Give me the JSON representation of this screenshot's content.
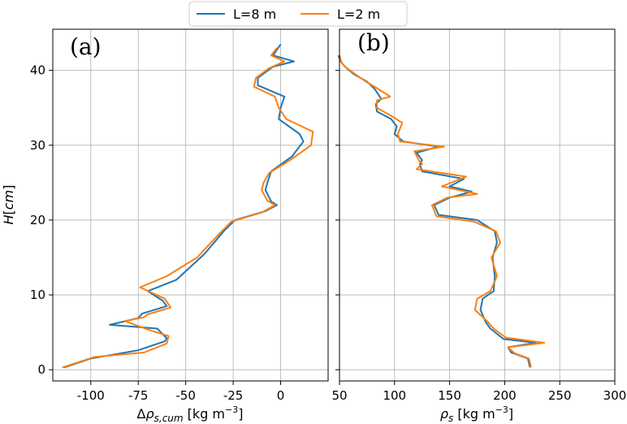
{
  "legend": {
    "entries": [
      {
        "label": "L=8 m",
        "color": "#1f77b4"
      },
      {
        "label": "L=2 m",
        "color": "#ff7f0e"
      }
    ],
    "placement": "top-center"
  },
  "chart_data": [
    {
      "type": "line",
      "panel_label": "(a)",
      "xlabel": "Δρ_{s,cum} [kg m^{-3}]",
      "ylabel": "H[cm]",
      "xlim": [
        -120,
        25
      ],
      "ylim": [
        -1.5,
        45.5
      ],
      "xticks": [
        -100,
        -75,
        -50,
        -25,
        0
      ],
      "xtick_labels": [
        "-100",
        "-75",
        "-50",
        "-25",
        "0"
      ],
      "yticks": [
        0,
        10,
        20,
        30,
        40
      ],
      "ytick_labels": [
        "0",
        "10",
        "20",
        "30",
        "40"
      ],
      "grid": true,
      "series": [
        {
          "name": "L=8 m",
          "color": "#1f77b4",
          "points": [
            [
              -114,
              0.3
            ],
            [
              -100,
              1.5
            ],
            [
              -75,
              2.6
            ],
            [
              -61,
              3.8
            ],
            [
              -60,
              4.2
            ],
            [
              -65,
              5.5
            ],
            [
              -90,
              6.0
            ],
            [
              -75,
              6.9
            ],
            [
              -73,
              7.5
            ],
            [
              -60,
              8.5
            ],
            [
              -62,
              9.2
            ],
            [
              -70,
              10.5
            ],
            [
              -55,
              12.0
            ],
            [
              -40,
              15.5
            ],
            [
              -30,
              18.5
            ],
            [
              -24,
              20.0
            ],
            [
              -8,
              21.2
            ],
            [
              -2,
              22.0
            ],
            [
              -5,
              22.5
            ],
            [
              -8,
              24.0
            ],
            [
              -7,
              25.0
            ],
            [
              -5,
              26.5
            ],
            [
              6,
              28.5
            ],
            [
              8,
              29.2
            ],
            [
              12,
              30.5
            ],
            [
              10,
              31.5
            ],
            [
              -1,
              33.5
            ],
            [
              0,
              35.0
            ],
            [
              2,
              36.5
            ],
            [
              -12,
              38.0
            ],
            [
              -12,
              39.0
            ],
            [
              -4,
              40.5
            ],
            [
              7,
              41.2
            ],
            [
              -4,
              42.0
            ],
            [
              0,
              43.5
            ]
          ]
        },
        {
          "name": "L=2 m",
          "color": "#ff7f0e",
          "points": [
            [
              -115,
              0.3
            ],
            [
              -98,
              1.7
            ],
            [
              -72,
              2.3
            ],
            [
              -60,
              3.5
            ],
            [
              -59,
              4.5
            ],
            [
              -69,
              5.3
            ],
            [
              -82,
              6.5
            ],
            [
              -72,
              7.0
            ],
            [
              -70,
              7.4
            ],
            [
              -58,
              8.3
            ],
            [
              -61,
              9.5
            ],
            [
              -74,
              11.0
            ],
            [
              -60,
              12.5
            ],
            [
              -44,
              15.0
            ],
            [
              -33,
              18.0
            ],
            [
              -26,
              19.8
            ],
            [
              -10,
              21.0
            ],
            [
              -3,
              22.0
            ],
            [
              -7,
              22.6
            ],
            [
              -10,
              24.0
            ],
            [
              -9,
              25.0
            ],
            [
              -6,
              26.3
            ],
            [
              5,
              28.0
            ],
            [
              16,
              30.0
            ],
            [
              17,
              31.8
            ],
            [
              3,
              33.5
            ],
            [
              -1,
              35.0
            ],
            [
              -3,
              36.5
            ],
            [
              -14,
              37.8
            ],
            [
              -13,
              39.0
            ],
            [
              -6,
              40.3
            ],
            [
              2,
              41.2
            ],
            [
              -5,
              42.0
            ],
            [
              -2,
              43.0
            ]
          ]
        }
      ]
    },
    {
      "type": "line",
      "panel_label": "(b)",
      "xlabel": "ρ_s [kg m^{-3}]",
      "xlim": [
        50,
        300
      ],
      "ylim": [
        -1.5,
        45.5
      ],
      "xticks": [
        50,
        100,
        150,
        200,
        250,
        300
      ],
      "xtick_labels": [
        "50",
        "100",
        "150",
        "200",
        "250",
        "300"
      ],
      "yticks": [
        0,
        10,
        20,
        30,
        40
      ],
      "grid": true,
      "series": [
        {
          "name": "L=8 m",
          "color": "#1f77b4",
          "points": [
            [
              223,
              0.3
            ],
            [
              221,
              1.5
            ],
            [
              206,
              2.3
            ],
            [
              203,
              3.0
            ],
            [
              228,
              3.6
            ],
            [
              199,
              4.1
            ],
            [
              187,
              5.5
            ],
            [
              183,
              6.3
            ],
            [
              178,
              8.0
            ],
            [
              180,
              9.5
            ],
            [
              190,
              10.5
            ],
            [
              191,
              12.5
            ],
            [
              189,
              15.0
            ],
            [
              193,
              17.0
            ],
            [
              191,
              18.5
            ],
            [
              175,
              20.0
            ],
            [
              140,
              20.7
            ],
            [
              136,
              22.0
            ],
            [
              150,
              23.0
            ],
            [
              170,
              23.8
            ],
            [
              150,
              24.5
            ],
            [
              163,
              25.5
            ],
            [
              125,
              26.5
            ],
            [
              123,
              27.5
            ],
            [
              125,
              28.0
            ],
            [
              120,
              29.0
            ],
            [
              140,
              29.8
            ],
            [
              108,
              30.5
            ],
            [
              100,
              31.5
            ],
            [
              102,
              32.5
            ],
            [
              97,
              33.5
            ],
            [
              84,
              34.5
            ],
            [
              83,
              35.5
            ],
            [
              88,
              36.2
            ],
            [
              82,
              37.5
            ],
            [
              75,
              38.5
            ],
            [
              63,
              39.5
            ],
            [
              55,
              40.5
            ],
            [
              51,
              41.2
            ],
            [
              49,
              42.0
            ]
          ]
        },
        {
          "name": "L=2 m",
          "color": "#ff7f0e",
          "points": [
            [
              224,
              0.3
            ],
            [
              222,
              1.5
            ],
            [
              209,
              2.2
            ],
            [
              203,
              3.0
            ],
            [
              236,
              3.6
            ],
            [
              201,
              4.3
            ],
            [
              190,
              5.5
            ],
            [
              184,
              6.5
            ],
            [
              173,
              8.0
            ],
            [
              175,
              9.5
            ],
            [
              187,
              10.5
            ],
            [
              193,
              12.5
            ],
            [
              188,
              15.0
            ],
            [
              196,
              17.0
            ],
            [
              192,
              18.5
            ],
            [
              172,
              19.8
            ],
            [
              138,
              20.5
            ],
            [
              134,
              22.0
            ],
            [
              148,
              23.0
            ],
            [
              175,
              23.5
            ],
            [
              143,
              24.5
            ],
            [
              165,
              25.8
            ],
            [
              120,
              26.8
            ],
            [
              125,
              27.5
            ],
            [
              122,
              28.0
            ],
            [
              118,
              29.2
            ],
            [
              145,
              29.8
            ],
            [
              105,
              30.5
            ],
            [
              103,
              31.5
            ],
            [
              107,
              33.0
            ],
            [
              96,
              34.0
            ],
            [
              84,
              35.0
            ],
            [
              84,
              36.0
            ],
            [
              96,
              36.5
            ],
            [
              82,
              37.8
            ],
            [
              76,
              38.3
            ],
            [
              66,
              39.3
            ],
            [
              55,
              40.5
            ],
            [
              52,
              41.0
            ],
            [
              50,
              42.0
            ]
          ]
        }
      ]
    }
  ]
}
